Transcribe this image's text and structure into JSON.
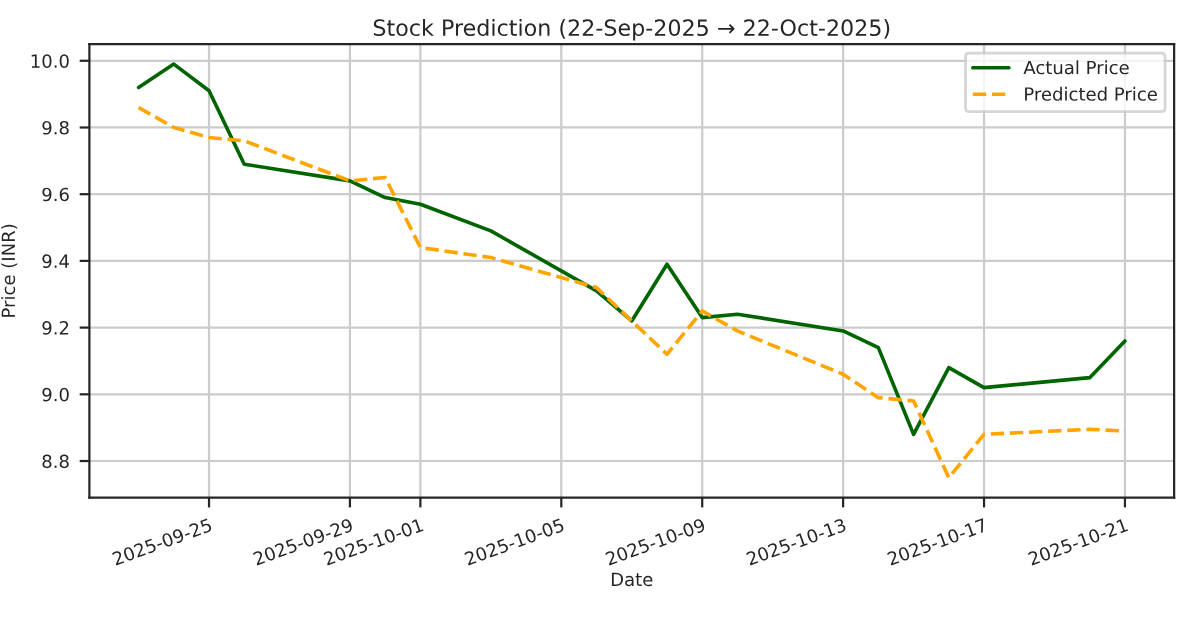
{
  "chart_data": {
    "type": "line",
    "title": "Stock Prediction (22-Sep-2025 → 22-Oct-2025)",
    "xlabel": "Date",
    "ylabel": "Price (INR)",
    "x": [
      "2025-09-23",
      "2025-09-24",
      "2025-09-25",
      "2025-09-26",
      "2025-09-29",
      "2025-09-30",
      "2025-10-01",
      "2025-10-03",
      "2025-10-06",
      "2025-10-07",
      "2025-10-08",
      "2025-10-09",
      "2025-10-10",
      "2025-10-13",
      "2025-10-14",
      "2025-10-15",
      "2025-10-16",
      "2025-10-17",
      "2025-10-20",
      "2025-10-21"
    ],
    "series": [
      {
        "name": "Actual Price",
        "color": "#006400",
        "line_style": "solid",
        "values": [
          9.92,
          9.99,
          9.91,
          9.69,
          9.64,
          9.59,
          9.57,
          9.49,
          9.31,
          9.22,
          9.39,
          9.23,
          9.24,
          9.19,
          9.14,
          8.88,
          9.08,
          9.02,
          9.05,
          9.16
        ]
      },
      {
        "name": "Predicted Price",
        "color": "#ffa500",
        "line_style": "dashed",
        "values": [
          9.86,
          9.8,
          9.77,
          9.76,
          9.64,
          9.65,
          9.44,
          9.41,
          9.32,
          9.22,
          9.12,
          9.25,
          9.19,
          9.06,
          8.99,
          8.98,
          8.75,
          8.88,
          8.895,
          8.89
        ]
      }
    ],
    "xlim": [
      "2025-09-21T14:30",
      "2025-10-22T09:30"
    ],
    "xticks": [
      {
        "value": "2025-09-25",
        "label": "2025-09-25"
      },
      {
        "value": "2025-09-29",
        "label": "2025-09-29"
      },
      {
        "value": "2025-10-01",
        "label": "2025-10-01"
      },
      {
        "value": "2025-10-05",
        "label": "2025-10-05"
      },
      {
        "value": "2025-10-09",
        "label": "2025-10-09"
      },
      {
        "value": "2025-10-13",
        "label": "2025-10-13"
      },
      {
        "value": "2025-10-17",
        "label": "2025-10-17"
      },
      {
        "value": "2025-10-21",
        "label": "2025-10-21"
      }
    ],
    "ylim": [
      8.69,
      10.05
    ],
    "yticks": [
      8.8,
      {
        "value": 9.0,
        "label": "9.0"
      },
      9.2,
      9.4,
      9.6,
      9.8,
      {
        "value": 10.0,
        "label": "10.0"
      }
    ],
    "grid": true,
    "legend": "top right",
    "marker": "none"
  }
}
